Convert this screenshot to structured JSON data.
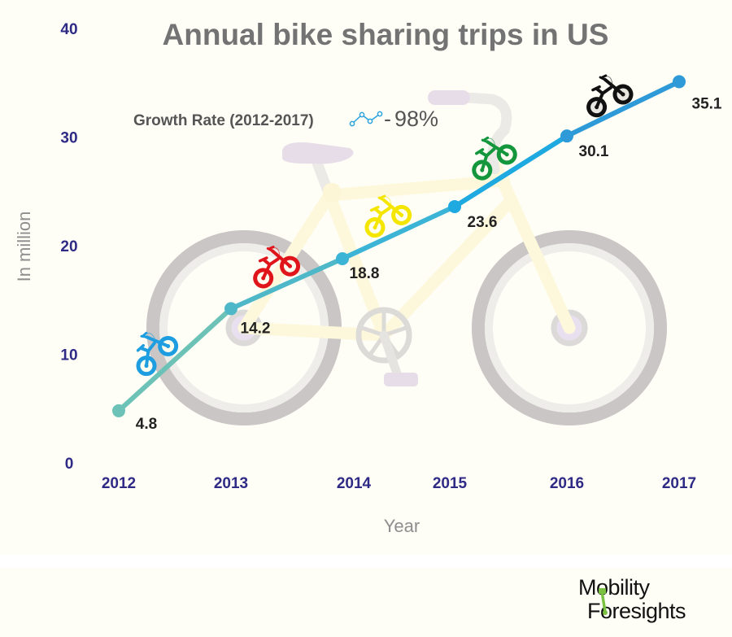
{
  "chart_data": {
    "type": "line",
    "title": "Annual bike sharing trips in US",
    "xlabel": "Year",
    "ylabel": "In million",
    "categories": [
      "2012",
      "2013",
      "2014",
      "2015",
      "2016",
      "2017"
    ],
    "series": [
      {
        "name": "Annual bike sharing trips (million)",
        "values": [
          4.8,
          14.2,
          18.8,
          23.6,
          30.1,
          35.1
        ]
      }
    ],
    "data_labels": [
      "4.8",
      "14.2",
      "18.8",
      "23.6",
      "30.1",
      "35.1"
    ],
    "yticks": [
      "0",
      "10",
      "20",
      "30",
      "40"
    ],
    "ylim": [
      0,
      40
    ],
    "grid": false,
    "annotation": {
      "label": "Growth Rate (2012-2017)",
      "separator": "-",
      "value": "98%",
      "icon": "trend-line-icon"
    },
    "decorations": {
      "background_icon": "bicycle-illustration",
      "segment_icons": [
        "blue-balance-bike-icon",
        "red-balance-bike-icon",
        "yellow-balance-bike-icon",
        "green-balance-bike-icon",
        "black-balance-bike-icon"
      ],
      "segment_icon_colors": [
        "#1e9ee0",
        "#e0141b",
        "#f4e600",
        "#14963c",
        "#111111"
      ]
    },
    "line_colors": [
      "#6cc2b6",
      "#4fb8c8",
      "#3cb4d6",
      "#1ea9e0",
      "#2f9ad8"
    ]
  },
  "colors": {
    "tick_text": "#2e2a85",
    "title_text": "#737373",
    "background": "#fefef6"
  },
  "footer": {
    "brand_line1": "Mobility",
    "brand_line2": "Foresights"
  }
}
